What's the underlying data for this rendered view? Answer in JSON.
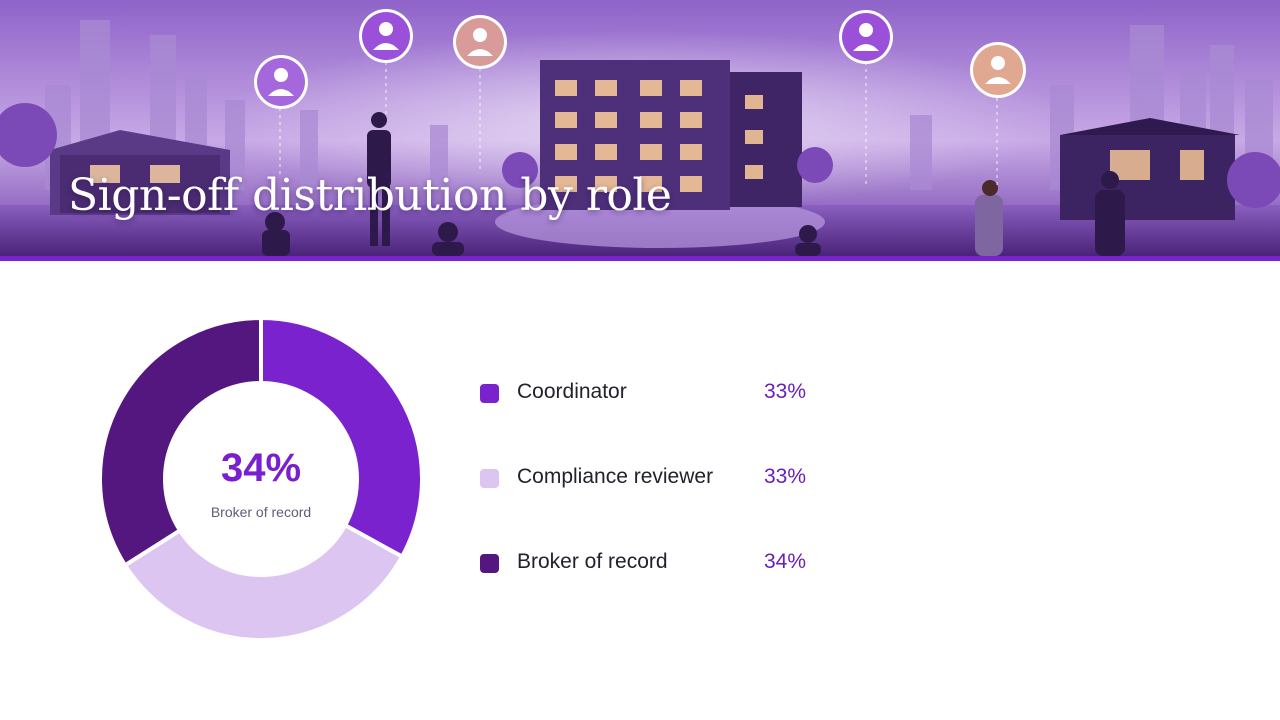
{
  "slide": {
    "title": "Sign-off distribution by role"
  },
  "colors": {
    "accent": "#7a22cc",
    "coordinator": "#7b22cf",
    "compliance_reviewer": "#dcc5f1",
    "broker_of_record": "#54177f"
  },
  "chart_data": {
    "type": "pie",
    "variant": "donut",
    "title": "",
    "center": {
      "value": "34%",
      "label": "Broker of record"
    },
    "categories": [
      "Coordinator",
      "Compliance reviewer",
      "Broker of record"
    ],
    "values": [
      33,
      33,
      34
    ],
    "value_labels": [
      "33%",
      "33%",
      "34%"
    ],
    "colors": [
      "#7b22cf",
      "#dcc5f1",
      "#54177f"
    ],
    "legend_placement": "right"
  },
  "banner": {
    "icons": [
      "user-avatar-icon",
      "user-avatar-icon",
      "user-avatar-icon",
      "user-avatar-icon",
      "user-avatar-icon"
    ]
  }
}
